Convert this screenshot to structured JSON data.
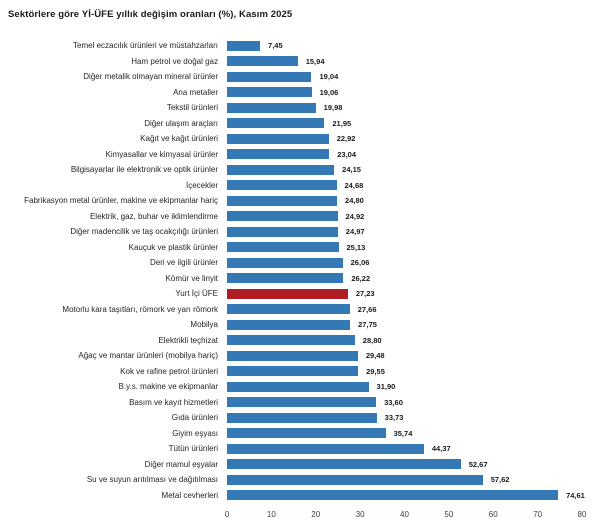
{
  "title": "Sektörlere göre Yİ-ÜFE yıllık değişim oranları (%), Kasım 2025",
  "chart_data": {
    "type": "bar",
    "orientation": "horizontal",
    "title": "Sektörlere göre Yİ-ÜFE yıllık değişim oranları (%), Kasım 2025",
    "categories": [
      "Temel eczacılık ürünleri ve müstahzarları",
      "Ham petrol ve doğal gaz",
      "Diğer metalik olmayan mineral ürünler",
      "Ana metaller",
      "Tekstil ürünleri",
      "Diğer ulaşım araçları",
      "Kağıt ve kağıt ürünleri",
      "Kimyasallar ve kimyasal ürünler",
      "Bilgisayarlar ile elektronik ve optik ürünler",
      "İçecekler",
      "Fabrikasyon metal ürünler, makine ve ekipmanlar hariç",
      "Elektrik, gaz, buhar ve iklimlendirme",
      "Diğer madencilik ve taş ocakçılığı ürünleri",
      "Kauçuk ve plastik ürünler",
      "Deri ve ilgili ürünler",
      "Kömür ve linyit",
      "Yurt İçi ÜFE",
      "Motorlu kara taşıtları, römork ve yarı römork",
      "Mobilya",
      "Elektrikli teçhizat",
      "Ağaç ve mantar ürünleri (mobilya hariç)",
      "Kok ve rafine petrol ürünleri",
      "B.y.s. makine ve ekipmanlar",
      "Basım ve kayıt hizmetleri",
      "Gıda ürünleri",
      "Giyim eşyası",
      "Tütün ürünleri",
      "Diğer mamul eşyalar",
      "Su ve suyun arıtılması ve dağıtılması",
      "Metal cevherleri"
    ],
    "values": [
      7.45,
      15.94,
      19.04,
      19.06,
      19.98,
      21.95,
      22.92,
      23.04,
      24.15,
      24.68,
      24.8,
      24.92,
      24.97,
      25.13,
      26.06,
      26.22,
      27.23,
      27.66,
      27.75,
      28.8,
      29.48,
      29.55,
      31.9,
      33.6,
      33.73,
      35.74,
      44.37,
      52.67,
      57.62,
      74.61
    ],
    "value_labels": [
      "7,45",
      "15,94",
      "19,04",
      "19,06",
      "19,98",
      "21,95",
      "22,92",
      "23,04",
      "24,15",
      "24,68",
      "24,80",
      "24,92",
      "24,97",
      "25,13",
      "26,06",
      "26,22",
      "27,23",
      "27,66",
      "27,75",
      "28,80",
      "29,48",
      "29,55",
      "31,90",
      "33,60",
      "33,73",
      "35,74",
      "44,37",
      "52,67",
      "57,62",
      "74,61"
    ],
    "highlight_category": "Yurt İçi ÜFE",
    "highlight_index": 16,
    "bar_color": "#3478b6",
    "highlight_color": "#b01c24",
    "xlabel": "",
    "ylabel": "",
    "xlim": [
      0,
      80
    ],
    "xticks": [
      0,
      10,
      20,
      30,
      40,
      50,
      60,
      70,
      80
    ],
    "grid": false,
    "legend": false
  }
}
